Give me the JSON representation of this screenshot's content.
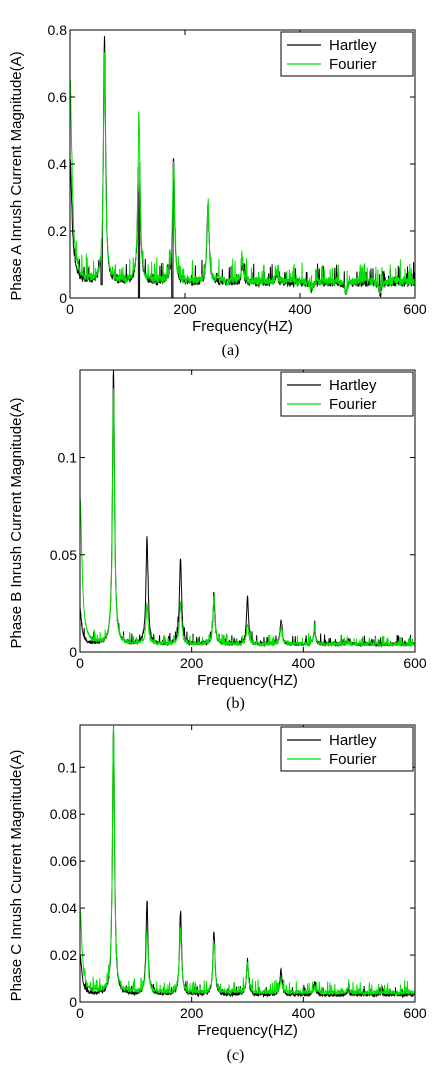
{
  "colors": {
    "hartley": "#000000",
    "fourier": "#00e000"
  },
  "chart_data": [
    {
      "type": "line",
      "caption": "(a)",
      "xlabel": "Frequency(HZ)",
      "ylabel": "Phase A Inrush Current Magnitude(A)",
      "xlim": [
        0,
        600
      ],
      "ylim": [
        0,
        0.8
      ],
      "xticks": [
        0,
        200,
        400,
        600
      ],
      "xtick_labels": [
        "0",
        "200",
        "400",
        "600"
      ],
      "yticks": [
        0,
        0.2,
        0.4,
        0.6,
        0.8
      ],
      "ytick_labels": [
        "0",
        "0.2",
        "0.4",
        "0.6",
        "0.8"
      ],
      "legend": {
        "placement": "top-right",
        "entries": [
          "Hartley",
          "Fourier"
        ]
      },
      "series": [
        {
          "name": "Hartley",
          "baseline": 0.045,
          "peaks": [
            {
              "f": 0,
              "v": 0.42
            },
            {
              "f": 60,
              "v": 0.78
            },
            {
              "f": 120,
              "v": 0.56
            },
            {
              "f": 180,
              "v": 0.42
            },
            {
              "f": 240,
              "v": 0.28
            },
            {
              "f": 300,
              "v": 0.1
            },
            {
              "f": 360,
              "v": 0.07
            },
            {
              "f": 420,
              "v": 0.025
            },
            {
              "f": 480,
              "v": 0.012
            },
            {
              "f": 540,
              "v": 0.008
            }
          ],
          "dips": [
            {
              "f": 55,
              "v": 0.04
            },
            {
              "f": 120,
              "v": 0.0
            },
            {
              "f": 178,
              "v": 0.0
            }
          ]
        },
        {
          "name": "Fourier",
          "baseline": 0.05,
          "peaks": [
            {
              "f": 0,
              "v": 0.65
            },
            {
              "f": 60,
              "v": 0.72
            },
            {
              "f": 120,
              "v": 0.54
            },
            {
              "f": 180,
              "v": 0.4
            },
            {
              "f": 240,
              "v": 0.26
            },
            {
              "f": 300,
              "v": 0.11
            },
            {
              "f": 360,
              "v": 0.08
            },
            {
              "f": 420,
              "v": 0.02
            },
            {
              "f": 480,
              "v": 0.01
            },
            {
              "f": 540,
              "v": 0.006
            }
          ],
          "dips": []
        }
      ]
    },
    {
      "type": "line",
      "caption": "(b)",
      "xlabel": "Frequency(HZ)",
      "ylabel": "Phase B Inrush Current Magnitude(A)",
      "xlim": [
        0,
        600
      ],
      "ylim": [
        0,
        0.145
      ],
      "xticks": [
        0,
        200,
        400,
        600
      ],
      "xtick_labels": [
        "0",
        "200",
        "400",
        "600"
      ],
      "yticks": [
        0,
        0.05,
        0.1
      ],
      "ytick_labels": [
        "0",
        "0.05",
        "0.1"
      ],
      "legend": {
        "placement": "top-right",
        "entries": [
          "Hartley",
          "Fourier"
        ]
      },
      "series": [
        {
          "name": "Hartley",
          "baseline": 0.004,
          "peaks": [
            {
              "f": 0,
              "v": 0.02
            },
            {
              "f": 60,
              "v": 0.145
            },
            {
              "f": 120,
              "v": 0.059
            },
            {
              "f": 180,
              "v": 0.048
            },
            {
              "f": 240,
              "v": 0.027
            },
            {
              "f": 300,
              "v": 0.028
            },
            {
              "f": 360,
              "v": 0.016
            },
            {
              "f": 420,
              "v": 0.011
            },
            {
              "f": 480,
              "v": 0.006
            },
            {
              "f": 540,
              "v": 0.004
            }
          ],
          "dips": []
        },
        {
          "name": "Fourier",
          "baseline": 0.004,
          "peaks": [
            {
              "f": 0,
              "v": 0.08
            },
            {
              "f": 60,
              "v": 0.135
            },
            {
              "f": 120,
              "v": 0.025
            },
            {
              "f": 180,
              "v": 0.026
            },
            {
              "f": 240,
              "v": 0.029
            },
            {
              "f": 300,
              "v": 0.014
            },
            {
              "f": 360,
              "v": 0.012
            },
            {
              "f": 420,
              "v": 0.012
            },
            {
              "f": 480,
              "v": 0.005
            },
            {
              "f": 540,
              "v": 0.003
            }
          ],
          "dips": []
        }
      ]
    },
    {
      "type": "line",
      "caption": "(c)",
      "xlabel": "Frequency(HZ)",
      "ylabel": "Phase C Inrush Current Magnitude(A)",
      "xlim": [
        0,
        600
      ],
      "ylim": [
        0,
        0.118
      ],
      "xticks": [
        0,
        200,
        400,
        600
      ],
      "xtick_labels": [
        "0",
        "200",
        "400",
        "600"
      ],
      "yticks": [
        0,
        0.02,
        0.04,
        0.06,
        0.08,
        0.1
      ],
      "ytick_labels": [
        "0",
        "0.02",
        "0.04",
        "0.06",
        "0.08",
        "0.1"
      ],
      "legend": {
        "placement": "top-right",
        "entries": [
          "Hartley",
          "Fourier"
        ]
      },
      "series": [
        {
          "name": "Hartley",
          "baseline": 0.003,
          "peaks": [
            {
              "f": 0,
              "v": 0.02
            },
            {
              "f": 60,
              "v": 0.118
            },
            {
              "f": 120,
              "v": 0.042
            },
            {
              "f": 180,
              "v": 0.038
            },
            {
              "f": 240,
              "v": 0.03
            },
            {
              "f": 300,
              "v": 0.018
            },
            {
              "f": 360,
              "v": 0.014
            },
            {
              "f": 420,
              "v": 0.008
            },
            {
              "f": 480,
              "v": 0.005
            },
            {
              "f": 540,
              "v": 0.004
            }
          ],
          "dips": []
        },
        {
          "name": "Fourier",
          "baseline": 0.004,
          "peaks": [
            {
              "f": 0,
              "v": 0.04
            },
            {
              "f": 60,
              "v": 0.118
            },
            {
              "f": 120,
              "v": 0.031
            },
            {
              "f": 180,
              "v": 0.032
            },
            {
              "f": 240,
              "v": 0.026
            },
            {
              "f": 300,
              "v": 0.017
            },
            {
              "f": 360,
              "v": 0.01
            },
            {
              "f": 420,
              "v": 0.006
            },
            {
              "f": 480,
              "v": 0.006
            },
            {
              "f": 540,
              "v": 0.004
            }
          ],
          "dips": []
        }
      ]
    }
  ]
}
